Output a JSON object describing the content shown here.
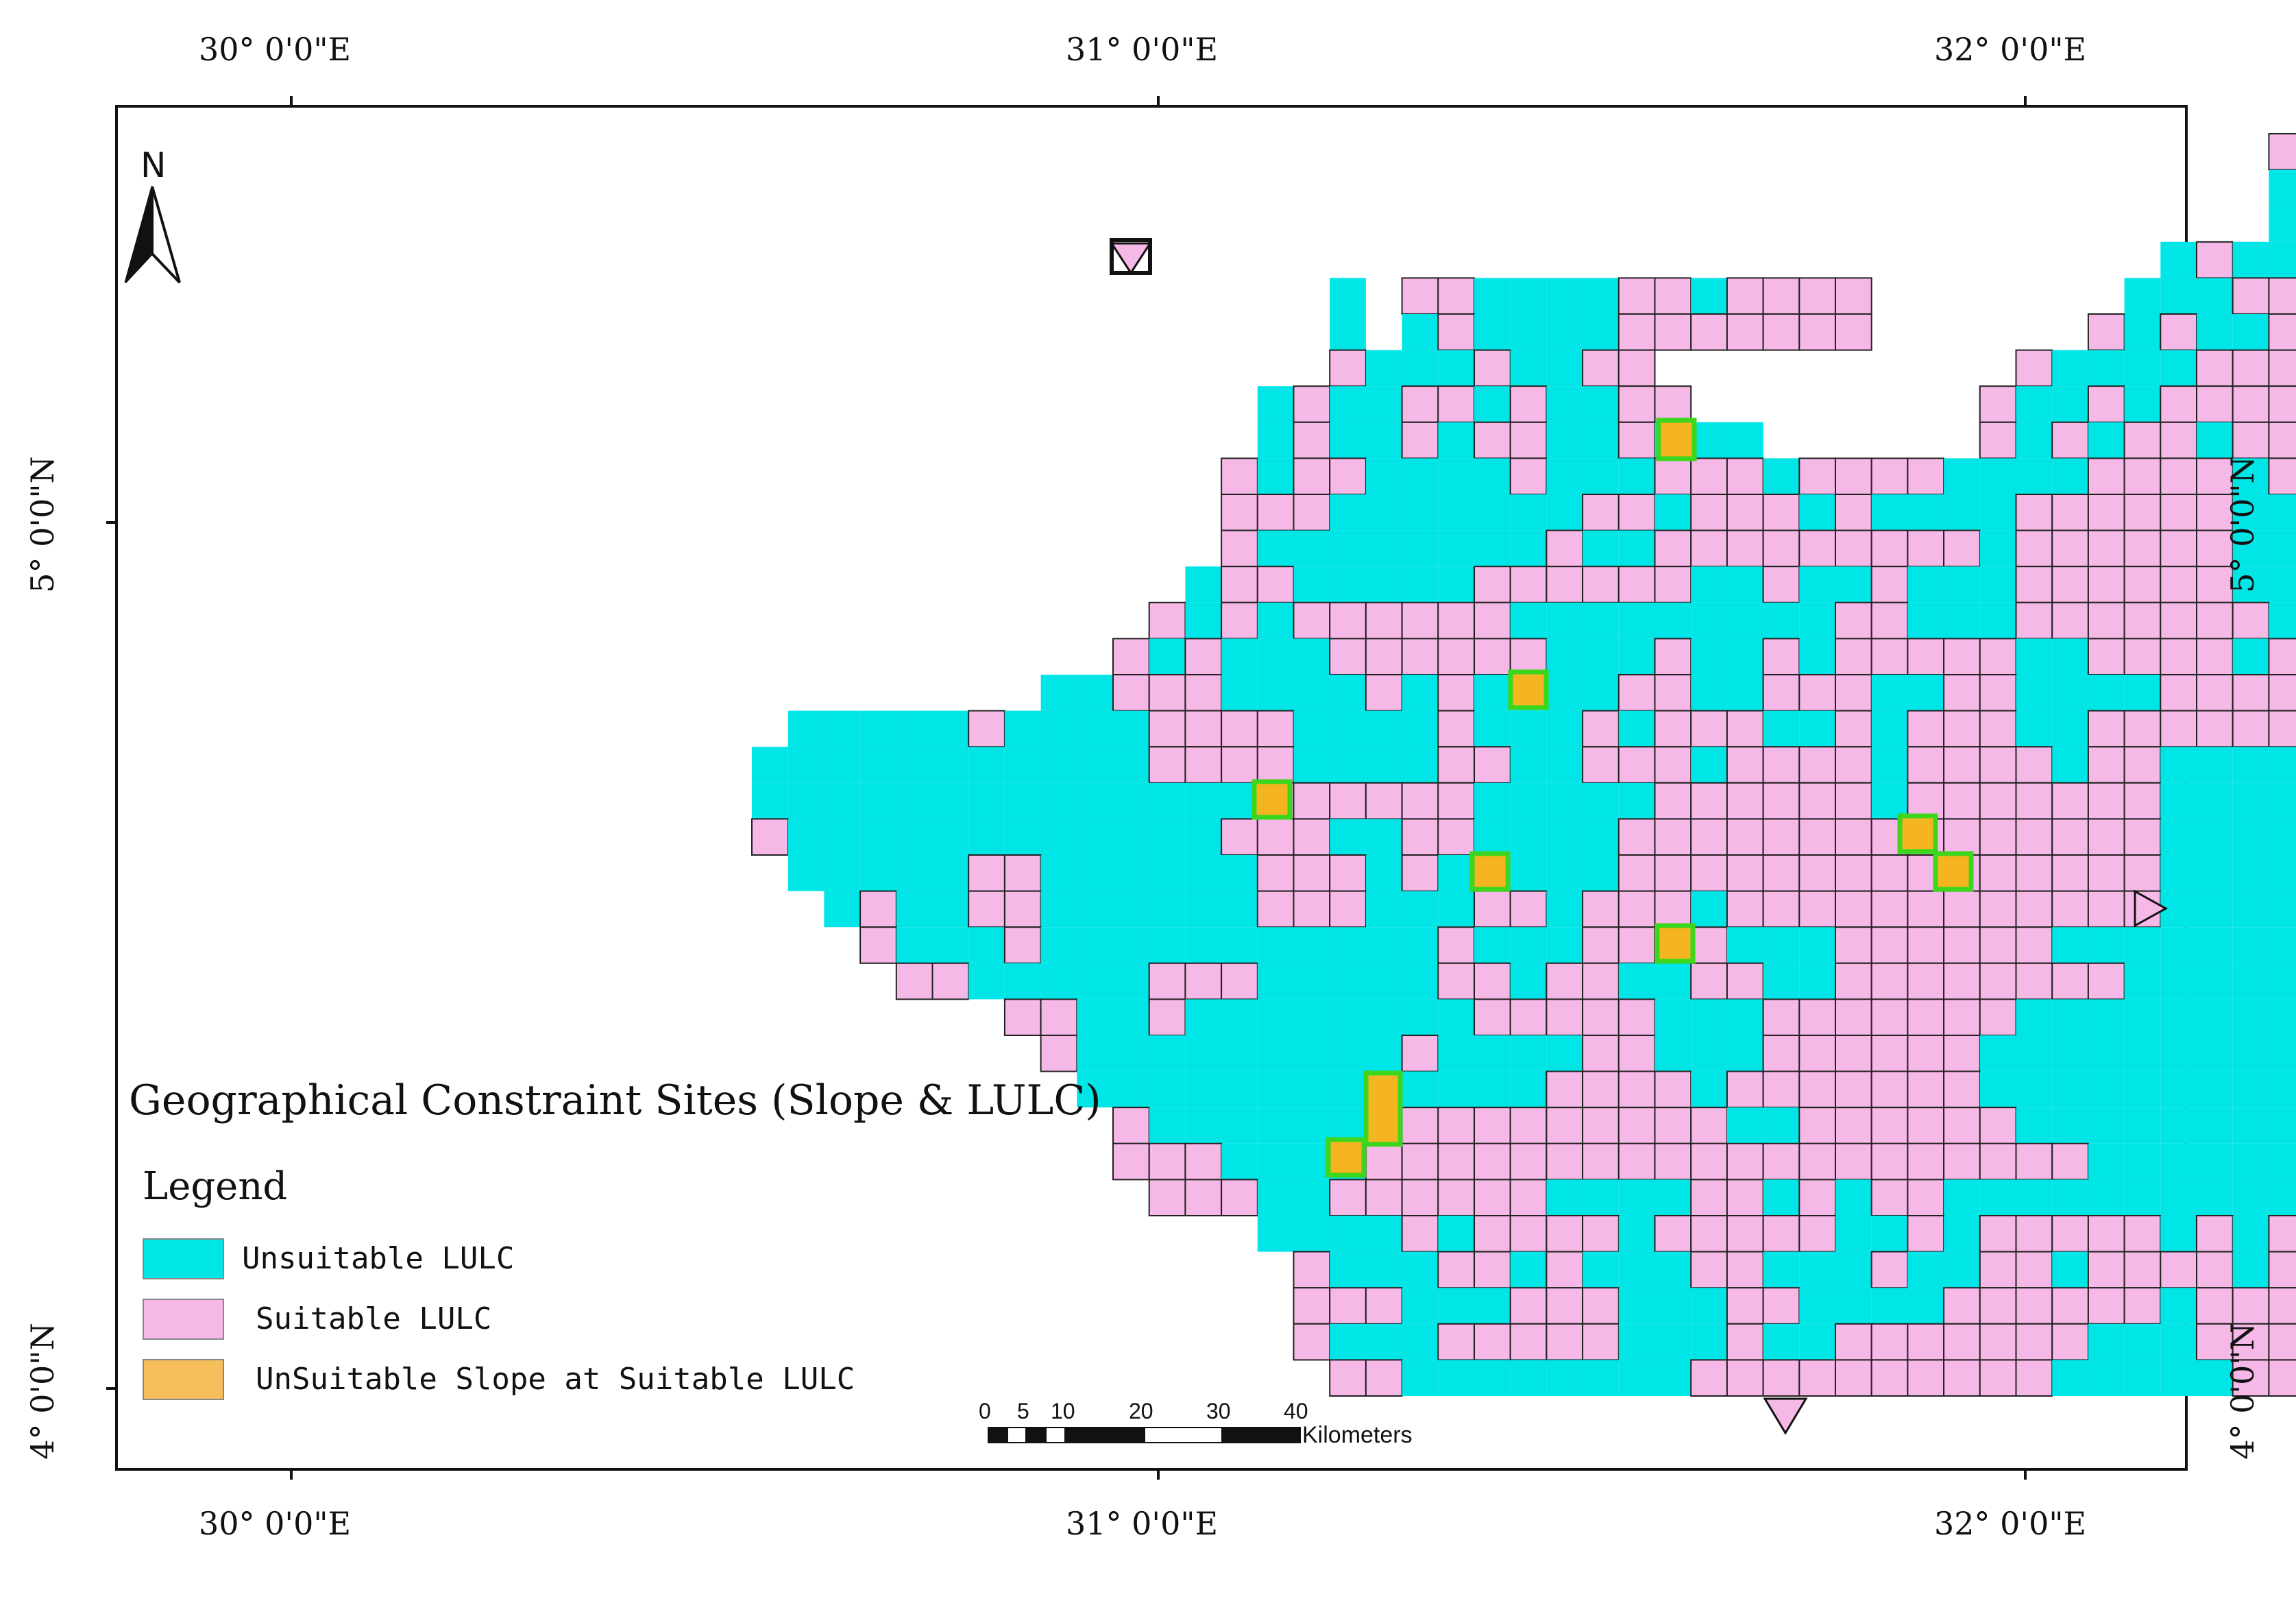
{
  "map": {
    "title": "Geographical Constraint Sites (Slope & LULC)",
    "top_longitudes": [
      "30° 0'0\"E",
      "31° 0'0\"E",
      "32° 0'0\"E"
    ],
    "bottom_longitudes": [
      "30° 0'0\"E",
      "31° 0'0\"E",
      "32° 0'0\"E"
    ],
    "left_latitudes": [
      "5° 0'0\"N",
      "4° 0'0\"N"
    ],
    "right_latitudes": [
      "5° 0'0\"N",
      "4° 0'0\"N"
    ],
    "north_label": "N",
    "north_arrow_icon": "north-arrow-icon"
  },
  "legend": {
    "title": "Legend",
    "items": [
      {
        "label": "Unsuitable LULC",
        "color": "#00e5e5"
      },
      {
        "label": "Suitable LULC",
        "color": "#f6b8e6"
      },
      {
        "label": "UnSuitable Slope at Suitable LULC",
        "color": "#f7bf5c"
      }
    ]
  },
  "scale_bar": {
    "ticks": [
      "0",
      "5",
      "10",
      "20",
      "30",
      "40"
    ],
    "unit": "Kilometers"
  },
  "colors": {
    "unsuitable": "#00e5e5",
    "suitable": "#f6b8e6",
    "slope": "#f5b520",
    "slope_border": "#3dd61f",
    "grid_line": "#222222"
  }
}
